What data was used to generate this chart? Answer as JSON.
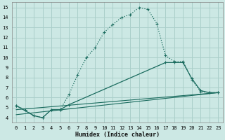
{
  "xlabel": "Humidex (Indice chaleur)",
  "background_color": "#cce8e4",
  "grid_color": "#aacfca",
  "line_color": "#1a6b5e",
  "xlim": [
    -0.5,
    23.5
  ],
  "ylim": [
    3.5,
    15.5
  ],
  "xticks": [
    0,
    1,
    2,
    3,
    4,
    5,
    6,
    7,
    8,
    9,
    10,
    11,
    12,
    13,
    14,
    15,
    16,
    17,
    18,
    19,
    20,
    21,
    22,
    23
  ],
  "yticks": [
    4,
    5,
    6,
    7,
    8,
    9,
    10,
    11,
    12,
    13,
    14,
    15
  ],
  "curve1_x": [
    0,
    1,
    2,
    3,
    4,
    5,
    6,
    7,
    8,
    9,
    10,
    11,
    12,
    13,
    14,
    15,
    16,
    17,
    18,
    19,
    20,
    21,
    22,
    23
  ],
  "curve1_y": [
    5.2,
    4.8,
    4.2,
    4.0,
    4.8,
    4.8,
    6.3,
    8.3,
    10.0,
    11.0,
    12.5,
    13.3,
    14.0,
    14.3,
    15.0,
    14.8,
    13.4,
    10.2,
    9.6,
    9.6,
    7.8,
    6.6,
    6.5,
    6.5
  ],
  "curve2_x": [
    0,
    2,
    3,
    4,
    5,
    6,
    17,
    18,
    19,
    20,
    21,
    22,
    23
  ],
  "curve2_y": [
    5.2,
    4.2,
    4.0,
    4.8,
    4.8,
    5.3,
    9.5,
    9.5,
    9.5,
    7.9,
    6.7,
    6.5,
    6.5
  ],
  "curve3_x": [
    0,
    23
  ],
  "curve3_y": [
    4.8,
    6.5
  ],
  "curve4_x": [
    0,
    23
  ],
  "curve4_y": [
    4.3,
    6.5
  ]
}
